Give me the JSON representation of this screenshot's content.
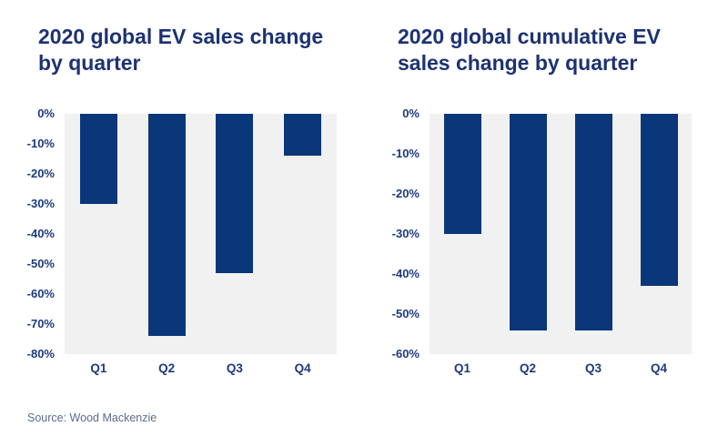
{
  "page": {
    "background": "#ffffff"
  },
  "source": "Source: Wood Mackenzie",
  "colors": {
    "bar": "#0a3779",
    "title": "#1c3273",
    "tick": "#1c3a80",
    "plot_bg": "#f1f1f1",
    "source_text": "#5a6a8e",
    "page_bg": "#ffffff"
  },
  "chart_data": [
    {
      "type": "bar",
      "title": "2020 global EV sales change by quarter",
      "title_lines": [
        "2020 global EV sales change",
        "by quarter"
      ],
      "categories": [
        "Q1",
        "Q2",
        "Q3",
        "Q4"
      ],
      "values": [
        -30,
        -74,
        -53,
        -14
      ],
      "unit": "%",
      "ylim": [
        -80,
        0
      ],
      "ytick_step": 10,
      "ytick_labels": [
        "0%",
        "-10%",
        "-20%",
        "-30%",
        "-40%",
        "-50%",
        "-60%",
        "-70%",
        "-80%"
      ],
      "xlabel": "",
      "ylabel": "",
      "grid": false,
      "legend": "none"
    },
    {
      "type": "bar",
      "title": "2020 global cumulative EV sales change by quarter",
      "title_lines": [
        "2020 global cumulative EV",
        "sales change by quarter"
      ],
      "categories": [
        "Q1",
        "Q2",
        "Q3",
        "Q4"
      ],
      "values": [
        -30,
        -54,
        -54,
        -43
      ],
      "unit": "%",
      "ylim": [
        -60,
        0
      ],
      "ytick_step": 10,
      "ytick_labels": [
        "0%",
        "-10%",
        "-20%",
        "-30%",
        "-40%",
        "-50%",
        "-60%"
      ],
      "xlabel": "",
      "ylabel": "",
      "grid": false,
      "legend": "none"
    }
  ]
}
